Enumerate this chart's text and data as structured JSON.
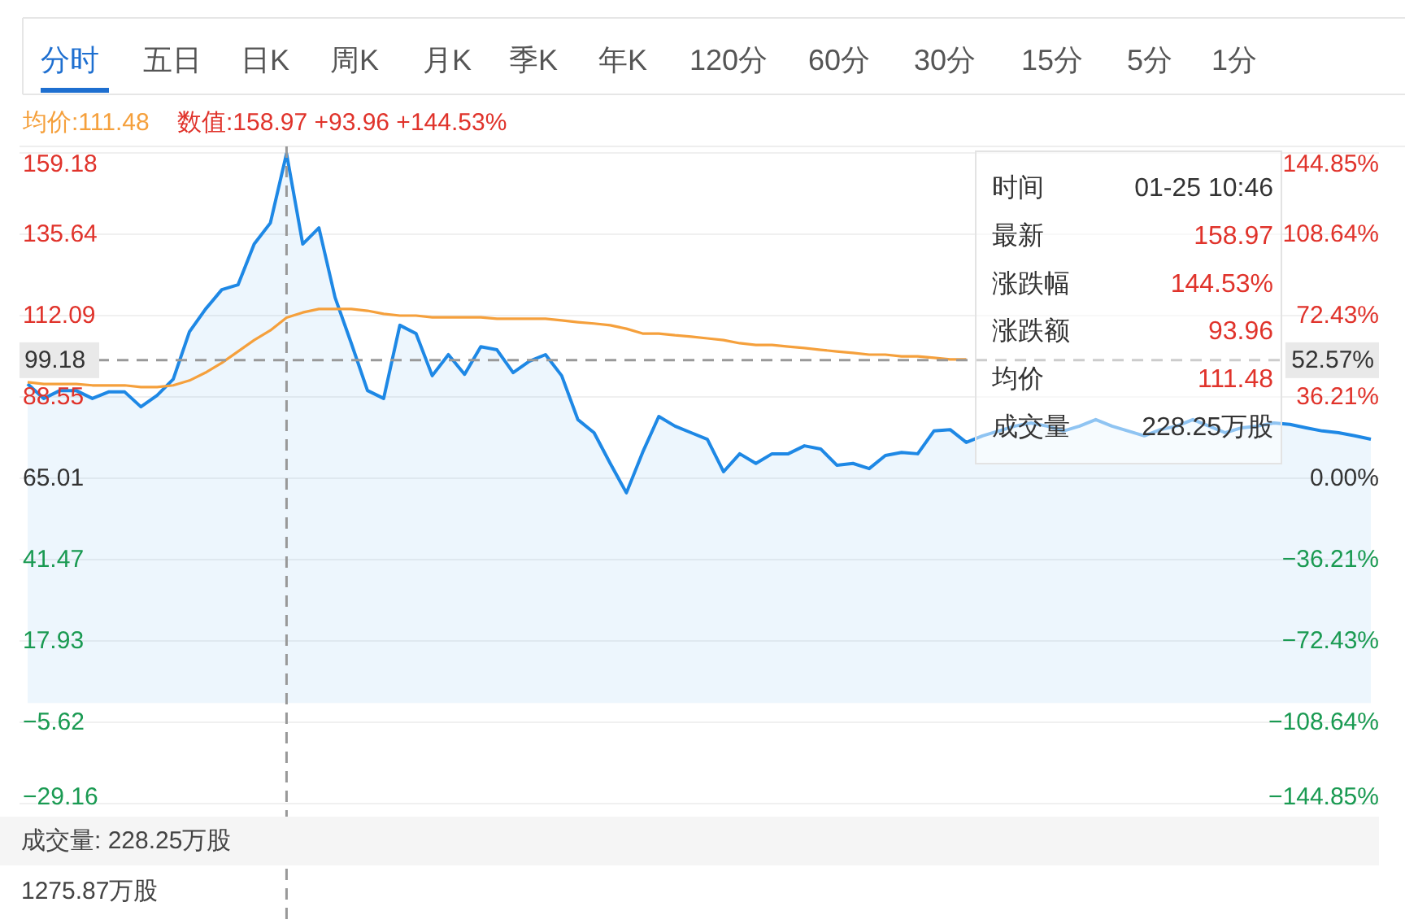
{
  "chart_data": {
    "type": "line",
    "categories": [
      null,
      null,
      null,
      null,
      null,
      null,
      null,
      null,
      null,
      null,
      null,
      null,
      null,
      null,
      null,
      null,
      null,
      null,
      null,
      null,
      null,
      null,
      null,
      null,
      null,
      null,
      null,
      null,
      null,
      null,
      null,
      null,
      null,
      null,
      null,
      null,
      null,
      null,
      null,
      null,
      null,
      null,
      null,
      null,
      null,
      null,
      null,
      null,
      null,
      null,
      null,
      null,
      null,
      null,
      null,
      null,
      null,
      null,
      null,
      null,
      null,
      null,
      null,
      null,
      null,
      null,
      null,
      null,
      null,
      null,
      null,
      null,
      null,
      null,
      null,
      null,
      null,
      null,
      null,
      null,
      null,
      null,
      null,
      null
    ],
    "series": [
      {
        "type": "area",
        "color": "#1e88e5",
        "values": [
          92.3,
          88.1,
          90.4,
          90.4,
          88.1,
          90.0,
          90.0,
          85.7,
          89.0,
          93.7,
          107.4,
          114.0,
          119.6,
          121.0,
          132.8,
          138.9,
          159.0,
          132.8,
          137.5,
          117.3,
          104.1,
          90.4,
          88.1,
          109.3,
          106.9,
          94.7,
          100.8,
          95.1,
          103.1,
          102.2,
          95.6,
          98.9,
          100.8,
          94.7,
          82.0,
          78.2,
          69.3,
          60.8,
          72.5,
          82.9,
          80.1,
          78.2,
          76.3,
          66.9,
          72.1,
          69.3,
          72.1,
          72.1,
          74.4,
          73.5,
          68.8,
          69.3,
          67.8,
          71.6,
          72.5,
          72.1,
          78.7,
          79.1,
          75.4,
          77.3,
          78.7,
          80.1,
          81.0,
          80.1,
          78.7,
          80.1,
          82.0,
          80.1,
          78.7,
          77.3,
          79.1,
          80.1,
          82.0,
          80.1,
          78.2,
          79.6,
          80.1,
          81.0,
          80.6,
          79.6,
          78.7,
          78.2,
          77.3,
          76.3
        ]
      },
      {
        "color": "#f5a03c",
        "values": [
          92.8,
          92.3,
          92.3,
          92.3,
          91.9,
          91.9,
          91.9,
          91.4,
          91.4,
          91.9,
          93.3,
          95.6,
          98.4,
          101.7,
          105.0,
          107.8,
          111.5,
          113.0,
          114.0,
          114.0,
          114.0,
          113.5,
          112.6,
          112.1,
          112.1,
          111.6,
          111.6,
          111.6,
          111.6,
          111.2,
          111.2,
          111.2,
          111.2,
          110.7,
          110.2,
          109.8,
          109.3,
          108.3,
          106.9,
          106.9,
          106.4,
          106.0,
          105.5,
          105.0,
          104.1,
          103.6,
          103.6,
          103.1,
          102.7,
          102.2,
          101.7,
          101.3,
          100.8,
          100.8,
          100.3,
          100.3,
          99.9,
          99.4,
          99.4,
          null,
          null,
          null,
          null,
          null,
          null,
          null,
          null,
          null,
          null,
          null,
          null,
          null,
          null,
          null,
          null,
          null,
          null,
          null,
          null,
          null,
          null,
          null,
          null,
          null
        ]
      }
    ],
    "ylim": [
      -29.16,
      159.18
    ],
    "yticks": [
      159.18,
      135.64,
      112.09,
      88.55,
      65.01,
      41.47,
      17.93,
      {
        "value": -5.62,
        "label": "−5.62"
      },
      {
        "value": -29.16,
        "label": "−29.16"
      }
    ],
    "y2lim": [
      -144.85,
      144.85
    ],
    "y2ticks": [
      {
        "value": 144.85,
        "label": "144.85%"
      },
      {
        "value": 108.64,
        "label": "108.64%"
      },
      {
        "value": 72.43,
        "label": "72.43%"
      },
      {
        "value": 36.21,
        "label": "36.21%"
      },
      {
        "value": 0,
        "label": "0.00%"
      },
      {
        "value": -36.21,
        "label": "−36.21%"
      },
      {
        "value": -72.43,
        "label": "−72.43%"
      },
      {
        "value": -108.64,
        "label": "−108.64%"
      },
      {
        "value": -144.85,
        "label": "−144.85%"
      }
    ],
    "grid": "y",
    "ref_lines": [
      {
        "axis": "y",
        "value": 99.18,
        "label": "99.18",
        "color": "#999999",
        "line_style": "dashed"
      }
    ],
    "annotations": [
      "分时",
      "五日",
      "日K",
      "周K",
      "月K",
      "季K",
      "年K",
      "120分",
      "60分",
      "30分",
      "15分",
      "5分",
      "1分",
      "均价:111.48",
      "数值:158.97 +93.96 +144.53%",
      "时间",
      "01-25 10:46",
      "最新",
      "158.97",
      "涨跌幅",
      "144.53%",
      "涨跌额",
      "93.96",
      "均价",
      "111.48",
      "成交量",
      "228.25万股",
      "成交量: 228.25万股",
      "1275.87万股",
      {
        "text": "52.57%",
        "y": 99.18
      }
    ]
  }
}
